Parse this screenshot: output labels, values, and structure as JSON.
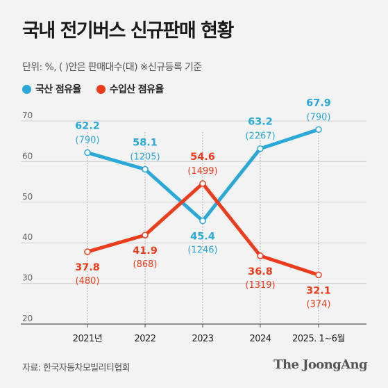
{
  "header": {
    "title": "국내 전기버스 신규판매 현황",
    "subtitle": "단위: %, ( )안은 판매대수(대) ※신규등록 기준"
  },
  "footer": {
    "source": "자료: 한국자동차모빌리티협회",
    "logo": "The JoongAng"
  },
  "colors": {
    "domestic": "#2aa9d8",
    "imported": "#ee3b1c"
  },
  "chart_data": {
    "type": "line",
    "title": "국내 전기버스 신규판매 현황",
    "categories": [
      "2021년",
      "2022",
      "2023",
      "2024",
      "2025. 1~6월"
    ],
    "yticks": [
      20,
      30,
      40,
      50,
      60,
      70
    ],
    "ylim": [
      20,
      70
    ],
    "legend_position": "top-left",
    "series": [
      {
        "name": "국산 점유율",
        "color": "#2aa9d8",
        "values": [
          62.2,
          58.1,
          45.4,
          63.2,
          67.9
        ],
        "counts": [
          "(790)",
          "(1205)",
          "(1246)",
          "(2267)",
          "(790)"
        ]
      },
      {
        "name": "수입산 점유율",
        "color": "#ee3b1c",
        "values": [
          37.8,
          41.9,
          54.6,
          36.8,
          32.1
        ],
        "counts": [
          "(480)",
          "(868)",
          "(1499)",
          "(1319)",
          "(374)"
        ]
      }
    ]
  }
}
